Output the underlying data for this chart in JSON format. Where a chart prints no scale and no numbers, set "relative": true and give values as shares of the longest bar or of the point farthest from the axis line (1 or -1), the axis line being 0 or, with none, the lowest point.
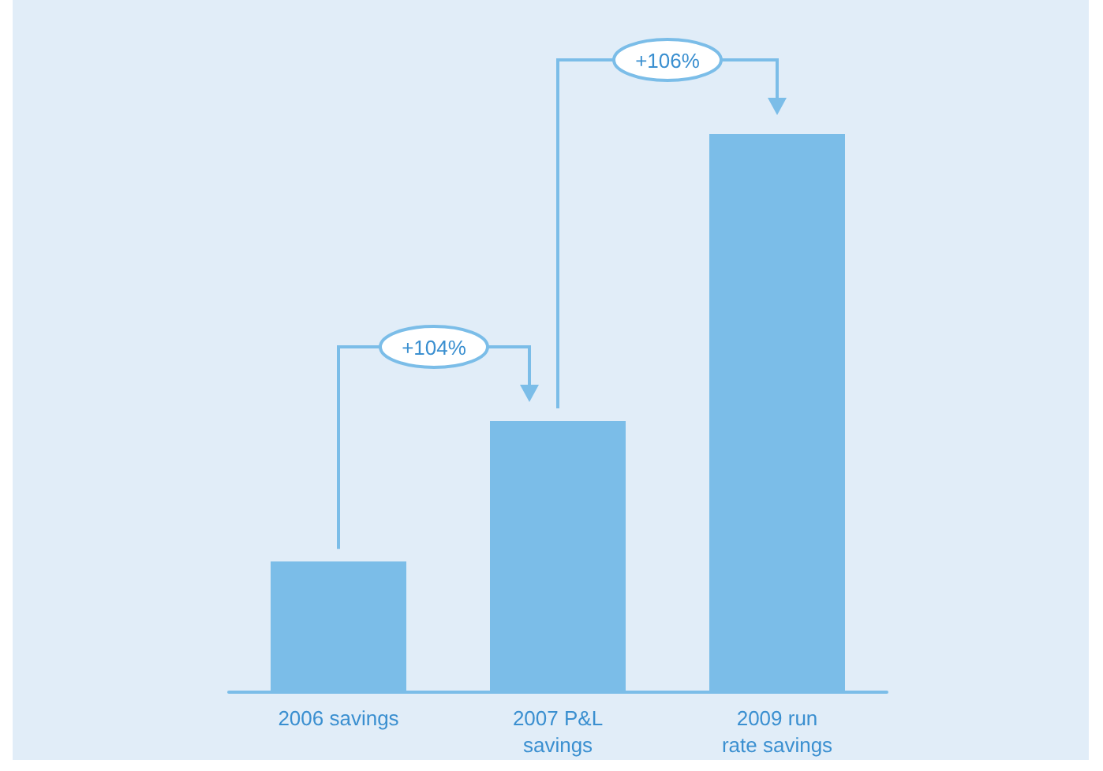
{
  "chart_data": {
    "type": "bar",
    "relative": true,
    "categories": [
      "2006 savings",
      "2007 P&L\nsavings",
      "2009 run\nrate savings"
    ],
    "values": [
      0.234,
      0.486,
      1
    ],
    "color": "#7bbde8",
    "annotations": [
      "+104%",
      "+106%"
    ]
  }
}
